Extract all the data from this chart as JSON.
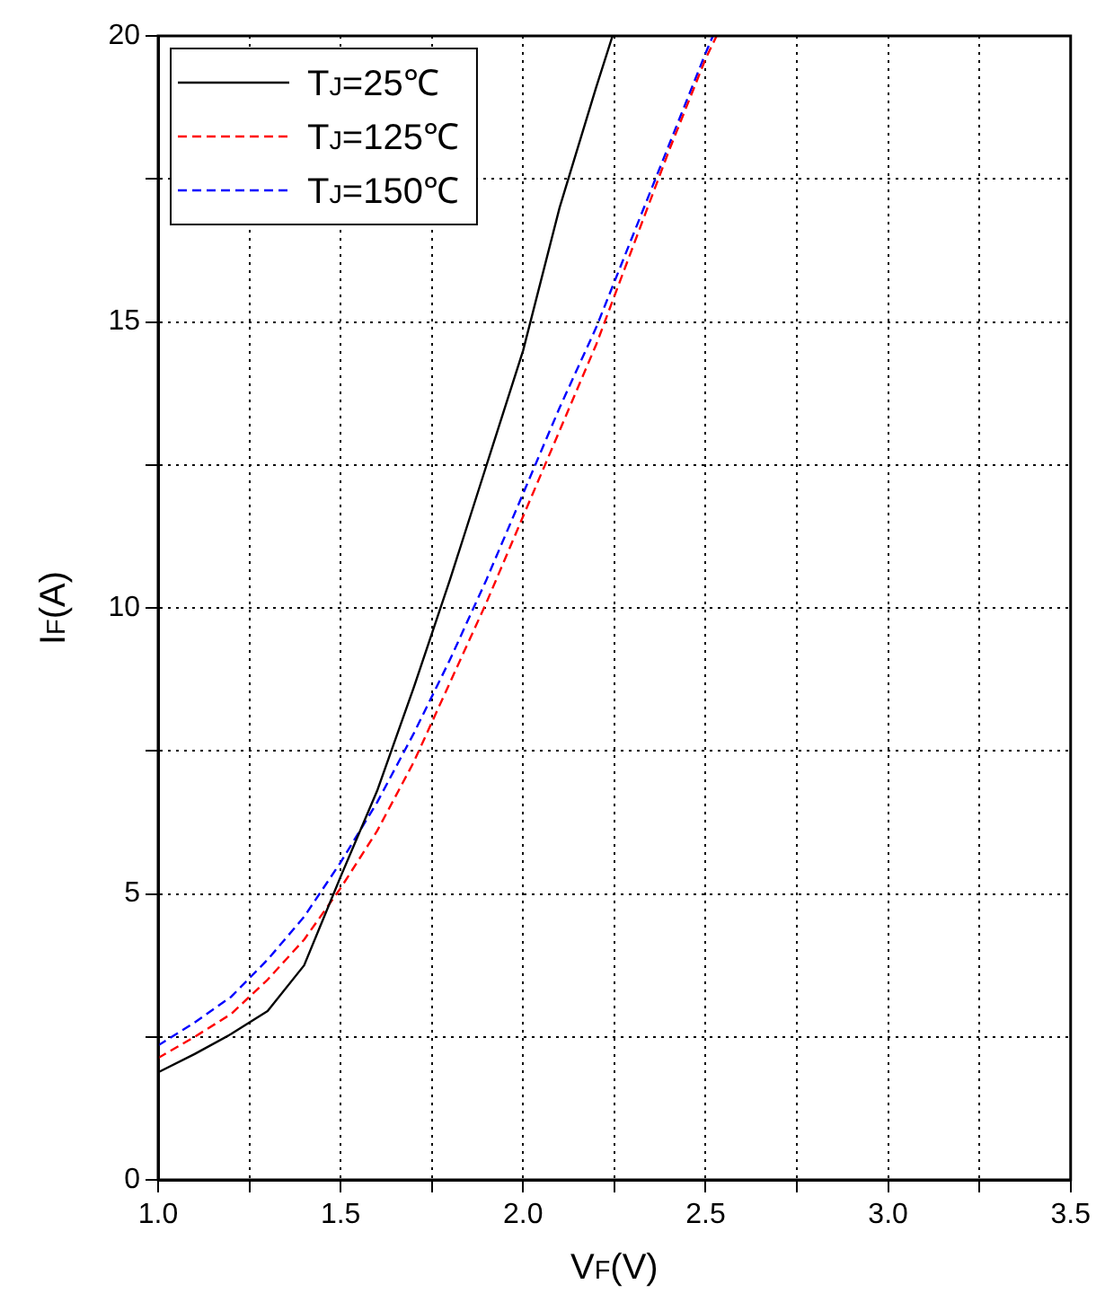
{
  "chart_data": {
    "type": "line",
    "xlabel": "V$_{F}$(V)",
    "ylabel": "I$_{F}$(A)",
    "xlim": [
      1.0,
      3.5
    ],
    "xticks": [
      {
        "value": 1.0,
        "label": "1.0"
      },
      {
        "value": 1.25,
        "label": null
      },
      {
        "value": 1.5,
        "label": "1.5"
      },
      {
        "value": 1.75,
        "label": null
      },
      {
        "value": 2.0,
        "label": "2.0"
      },
      {
        "value": 2.25,
        "label": null
      },
      {
        "value": 2.5,
        "label": "2.5"
      },
      {
        "value": 2.75,
        "label": null
      },
      {
        "value": 3.0,
        "label": "3.0"
      },
      {
        "value": 3.25,
        "label": null
      },
      {
        "value": 3.5,
        "label": "3.5"
      }
    ],
    "ylim": [
      0,
      20
    ],
    "yticks": [
      0,
      {
        "value": 2.5,
        "label": null
      },
      5,
      {
        "value": 7.5,
        "label": null
      },
      10,
      {
        "value": 12.5,
        "label": null
      },
      15,
      {
        "value": 17.5,
        "label": null
      },
      20
    ],
    "grid": true,
    "legend": "top left",
    "marker": "none",
    "series": [
      {
        "name": "T$_{J}$=25℃",
        "color": "#000000",
        "line_style": "solid",
        "x": [
          1.0,
          1.1,
          1.2,
          1.3,
          1.4,
          1.5,
          1.6,
          1.7,
          1.8,
          1.9,
          2.0,
          2.1,
          2.2,
          2.245
        ],
        "values": [
          1.88,
          2.2,
          2.55,
          2.95,
          3.75,
          5.3,
          6.8,
          8.6,
          10.5,
          12.5,
          14.5,
          17.0,
          19.1,
          20
        ]
      },
      {
        "name": "T$_{J}$=125℃",
        "color": "#ff0000",
        "line_style": "dashed",
        "x": [
          1.0,
          1.1,
          1.2,
          1.3,
          1.4,
          1.5,
          1.6,
          1.7,
          1.8,
          1.9,
          2.0,
          2.1,
          2.2,
          2.3,
          2.4,
          2.5,
          2.53
        ],
        "values": [
          2.13,
          2.5,
          2.9,
          3.5,
          4.2,
          5.1,
          6.1,
          7.3,
          8.7,
          10.1,
          11.6,
          13.1,
          14.6,
          16.3,
          18.0,
          19.6,
          20
        ]
      },
      {
        "name": "T$_{J}$=150℃",
        "color": "#0000ff",
        "line_style": "dashed",
        "x": [
          1.0,
          1.1,
          1.2,
          1.3,
          1.4,
          1.5,
          1.6,
          1.7,
          1.8,
          1.9,
          2.0,
          2.1,
          2.2,
          2.3,
          2.4,
          2.5,
          2.52
        ],
        "values": [
          2.35,
          2.75,
          3.2,
          3.85,
          4.6,
          5.55,
          6.6,
          7.8,
          9.1,
          10.5,
          12.0,
          13.5,
          14.9,
          16.5,
          18.1,
          19.7,
          20
        ]
      }
    ]
  }
}
